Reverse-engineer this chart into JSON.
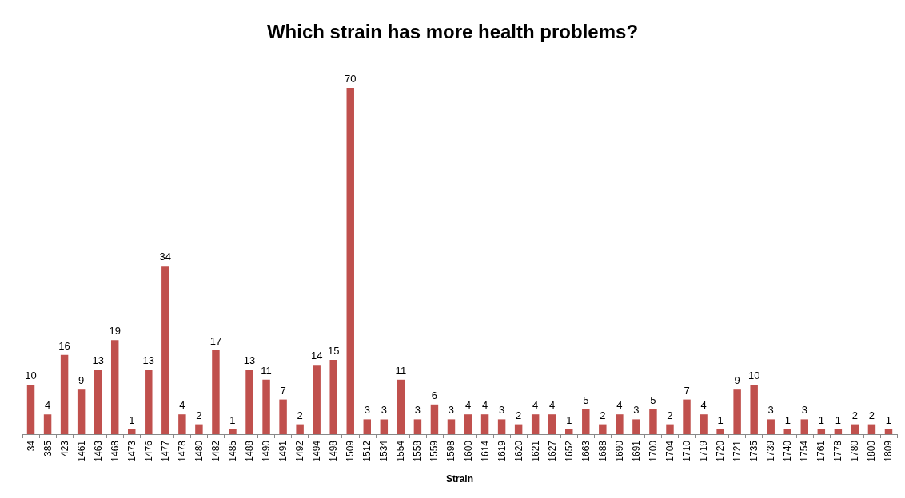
{
  "chart_data": {
    "type": "bar",
    "title": "Which strain has more health problems?",
    "xlabel": "Strain",
    "categories": [
      "34",
      "385",
      "423",
      "1461",
      "1463",
      "1468",
      "1473",
      "1476",
      "1477",
      "1478",
      "1480",
      "1482",
      "1485",
      "1488",
      "1490",
      "1491",
      "1492",
      "1494",
      "1498",
      "1509",
      "1512",
      "1534",
      "1554",
      "1558",
      "1559",
      "1598",
      "1600",
      "1614",
      "1619",
      "1620",
      "1621",
      "1627",
      "1652",
      "1663",
      "1688",
      "1690",
      "1691",
      "1700",
      "1704",
      "1710",
      "1719",
      "1720",
      "1721",
      "1735",
      "1739",
      "1740",
      "1754",
      "1761",
      "1778",
      "1780",
      "1800",
      "1809"
    ],
    "values": [
      10,
      4,
      16,
      9,
      13,
      19,
      1,
      13,
      34,
      4,
      2,
      17,
      1,
      13,
      11,
      7,
      2,
      14,
      15,
      70,
      3,
      3,
      11,
      3,
      6,
      3,
      4,
      4,
      3,
      2,
      4,
      4,
      1,
      5,
      2,
      4,
      3,
      5,
      2,
      7,
      4,
      1,
      9,
      10,
      3,
      1,
      3,
      1,
      1,
      2,
      2,
      1
    ],
    "color": "#c0504d",
    "data_labels": true
  }
}
